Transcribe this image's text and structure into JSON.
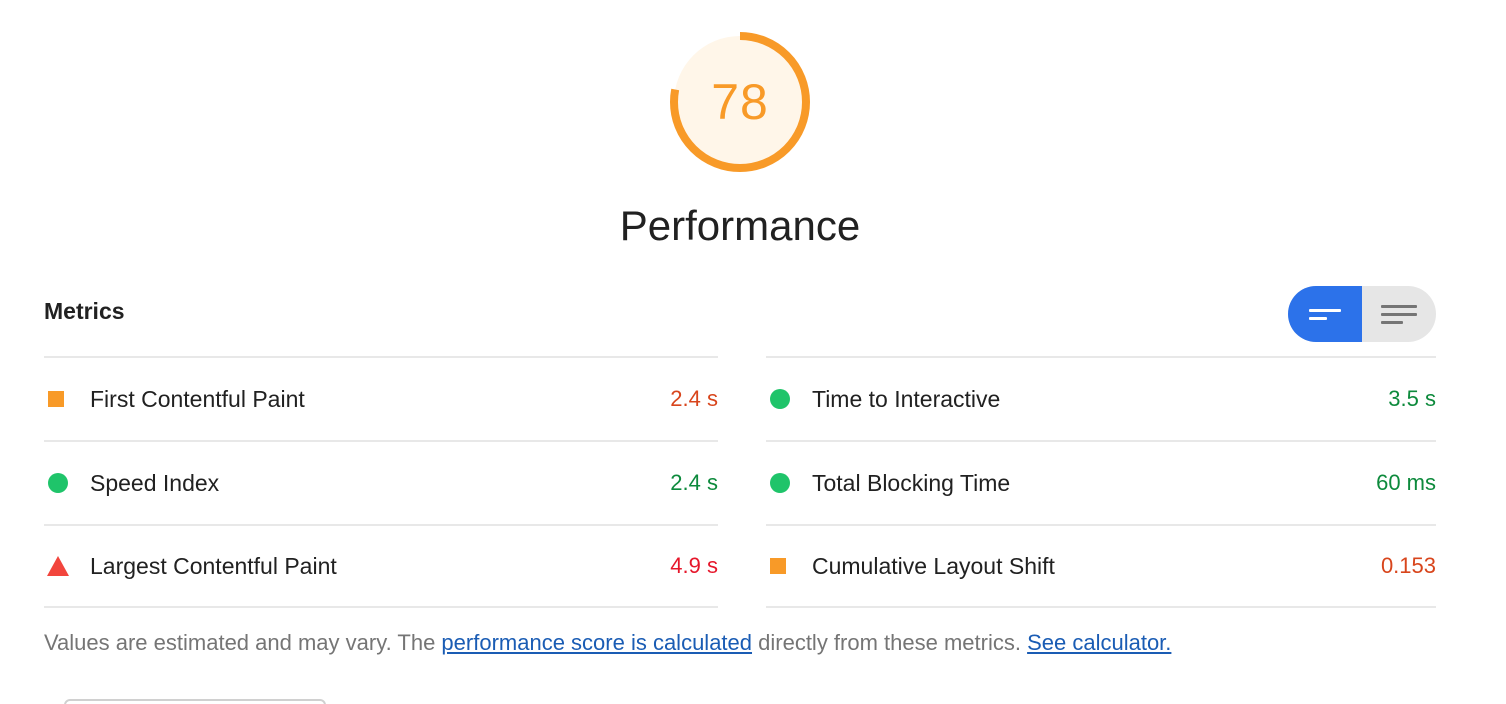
{
  "score": {
    "value": "78",
    "fraction": 0.78,
    "color": "#f89a28",
    "fill": "#fff6e9"
  },
  "category_title": "Performance",
  "metrics": {
    "heading": "Metrics",
    "toggle": {
      "active_icon": "lines-short-icon",
      "inactive_icon": "lines-full-icon",
      "active_color": "#2c72ea"
    },
    "left": [
      {
        "indicator": "square-orange",
        "label": "First Contentful Paint",
        "value": "2.4 s",
        "value_color": "#d8451c"
      },
      {
        "indicator": "circle-green",
        "label": "Speed Index",
        "value": "2.4 s",
        "value_color": "#0d8a3c"
      },
      {
        "indicator": "triangle-red",
        "label": "Largest Contentful Paint",
        "value": "4.9 s",
        "value_color": "#e6172b"
      }
    ],
    "right": [
      {
        "indicator": "circle-green",
        "label": "Time to Interactive",
        "value": "3.5 s",
        "value_color": "#0d8a3c"
      },
      {
        "indicator": "circle-green",
        "label": "Total Blocking Time",
        "value": "60 ms",
        "value_color": "#0d8a3c"
      },
      {
        "indicator": "square-orange",
        "label": "Cumulative Layout Shift",
        "value": "0.153",
        "value_color": "#d8451c"
      }
    ]
  },
  "footnote": {
    "text_before": "Values are estimated and may vary. The ",
    "link1": "performance score is calculated",
    "text_middle": " directly from these metrics. ",
    "link2": "See calculator."
  }
}
